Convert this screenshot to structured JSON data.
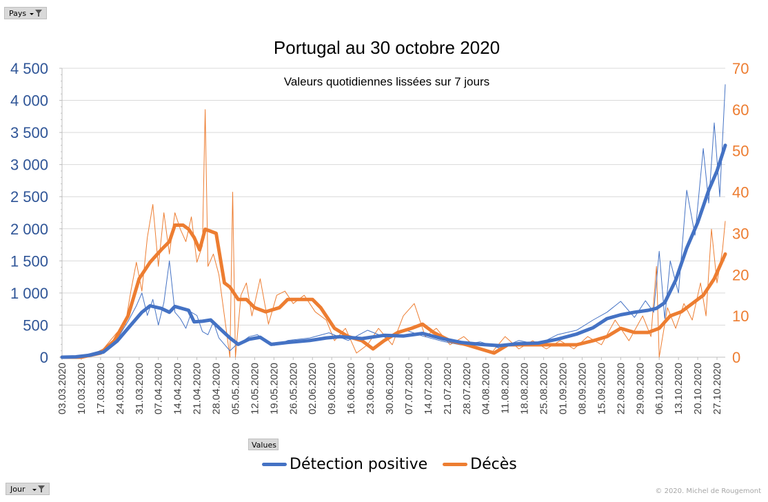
{
  "filters": {
    "pays_label": "Pays",
    "jour_label": "Jour",
    "values_label": "Values"
  },
  "copyright": "© 2020.  Michel de Rougemont",
  "chart_data": {
    "type": "line",
    "title": "Portugal au 30 octobre 2020",
    "subtitle": "Valeurs quotidiennes lissées sur 7 jours",
    "colors": {
      "detection": "#4472C4",
      "deces": "#ED7D31",
      "grid": "#d9d9d9"
    },
    "x_range": [
      "2020-03-03",
      "2020-10-30"
    ],
    "x_tick_labels": [
      "03.03.2020",
      "10.03.2020",
      "17.03.2020",
      "24.03.2020",
      "31.03.2020",
      "07.04.2020",
      "14.04.2020",
      "21.04.2020",
      "28.04.2020",
      "05.05.2020",
      "12.05.2020",
      "19.05.2020",
      "26.05.2020",
      "02.06.2020",
      "09.06.2020",
      "16.06.2020",
      "23.06.2020",
      "30.06.2020",
      "07.07.2020",
      "14.07.2020",
      "21.07.2020",
      "28.07.2020",
      "04.08.2020",
      "11.08.2020",
      "18.08.2020",
      "25.08.2020",
      "01.09.2020",
      "08.09.2020",
      "15.09.2020",
      "22.09.2020",
      "29.09.2020",
      "06.10.2020",
      "13.10.2020",
      "20.10.2020",
      "27.10.2020"
    ],
    "y_left": {
      "min": 0,
      "max": 4500,
      "ticks": [
        "0",
        "500",
        "1 000",
        "1 500",
        "2 000",
        "2 500",
        "3 000",
        "3 500",
        "4 000",
        "4 500"
      ],
      "tick_values": [
        0,
        500,
        1000,
        1500,
        2000,
        2500,
        3000,
        3500,
        4000,
        4500
      ]
    },
    "y_right": {
      "min": 0,
      "max": 70,
      "ticks": [
        "0",
        "10",
        "20",
        "30",
        "40",
        "50",
        "60",
        "70"
      ],
      "tick_values": [
        0,
        10,
        20,
        30,
        40,
        50,
        60,
        70
      ]
    },
    "series": [
      {
        "name": "Détection positive",
        "axis": "left",
        "smoothed": [
          [
            "2020-03-03",
            0
          ],
          [
            "2020-03-08",
            5
          ],
          [
            "2020-03-13",
            30
          ],
          [
            "2020-03-18",
            80
          ],
          [
            "2020-03-23",
            250
          ],
          [
            "2020-03-28",
            500
          ],
          [
            "2020-04-01",
            700
          ],
          [
            "2020-04-04",
            800
          ],
          [
            "2020-04-08",
            760
          ],
          [
            "2020-04-11",
            700
          ],
          [
            "2020-04-13",
            790
          ],
          [
            "2020-04-18",
            730
          ],
          [
            "2020-04-20",
            550
          ],
          [
            "2020-04-23",
            560
          ],
          [
            "2020-04-26",
            580
          ],
          [
            "2020-04-30",
            420
          ],
          [
            "2020-05-03",
            300
          ],
          [
            "2020-05-06",
            200
          ],
          [
            "2020-05-10",
            280
          ],
          [
            "2020-05-14",
            310
          ],
          [
            "2020-05-18",
            200
          ],
          [
            "2020-05-24",
            230
          ],
          [
            "2020-06-01",
            260
          ],
          [
            "2020-06-07",
            300
          ],
          [
            "2020-06-12",
            320
          ],
          [
            "2020-06-20",
            290
          ],
          [
            "2020-06-28",
            340
          ],
          [
            "2020-07-05",
            330
          ],
          [
            "2020-07-12",
            370
          ],
          [
            "2020-07-19",
            290
          ],
          [
            "2020-07-26",
            230
          ],
          [
            "2020-08-02",
            200
          ],
          [
            "2020-08-09",
            180
          ],
          [
            "2020-08-16",
            210
          ],
          [
            "2020-08-23",
            220
          ],
          [
            "2020-08-30",
            280
          ],
          [
            "2020-09-06",
            360
          ],
          [
            "2020-09-12",
            460
          ],
          [
            "2020-09-17",
            600
          ],
          [
            "2020-09-22",
            660
          ],
          [
            "2020-09-27",
            700
          ],
          [
            "2020-10-02",
            730
          ],
          [
            "2020-10-05",
            760
          ],
          [
            "2020-10-08",
            850
          ],
          [
            "2020-10-12",
            1200
          ],
          [
            "2020-10-16",
            1700
          ],
          [
            "2020-10-20",
            2100
          ],
          [
            "2020-10-24",
            2600
          ],
          [
            "2020-10-27",
            2900
          ],
          [
            "2020-10-30",
            3300
          ]
        ],
        "raw": [
          [
            "2020-03-03",
            0
          ],
          [
            "2020-03-10",
            20
          ],
          [
            "2020-03-17",
            100
          ],
          [
            "2020-03-21",
            200
          ],
          [
            "2020-03-24",
            350
          ],
          [
            "2020-03-27",
            560
          ],
          [
            "2020-03-30",
            800
          ],
          [
            "2020-04-01",
            1000
          ],
          [
            "2020-04-03",
            650
          ],
          [
            "2020-04-05",
            900
          ],
          [
            "2020-04-07",
            500
          ],
          [
            "2020-04-09",
            850
          ],
          [
            "2020-04-11",
            1500
          ],
          [
            "2020-04-13",
            700
          ],
          [
            "2020-04-15",
            600
          ],
          [
            "2020-04-17",
            450
          ],
          [
            "2020-04-19",
            700
          ],
          [
            "2020-04-21",
            650
          ],
          [
            "2020-04-23",
            400
          ],
          [
            "2020-04-25",
            350
          ],
          [
            "2020-04-27",
            550
          ],
          [
            "2020-04-29",
            300
          ],
          [
            "2020-05-01",
            200
          ],
          [
            "2020-05-03",
            100
          ],
          [
            "2020-05-05",
            180
          ],
          [
            "2020-05-07",
            230
          ],
          [
            "2020-05-10",
            320
          ],
          [
            "2020-05-13",
            350
          ],
          [
            "2020-05-16",
            250
          ],
          [
            "2020-05-19",
            180
          ],
          [
            "2020-05-24",
            260
          ],
          [
            "2020-06-01",
            300
          ],
          [
            "2020-06-08",
            380
          ],
          [
            "2020-06-15",
            260
          ],
          [
            "2020-06-22",
            420
          ],
          [
            "2020-06-29",
            300
          ],
          [
            "2020-07-06",
            420
          ],
          [
            "2020-07-12",
            330
          ],
          [
            "2020-07-19",
            250
          ],
          [
            "2020-07-26",
            190
          ],
          [
            "2020-08-02",
            240
          ],
          [
            "2020-08-09",
            140
          ],
          [
            "2020-08-16",
            260
          ],
          [
            "2020-08-23",
            200
          ],
          [
            "2020-08-30",
            350
          ],
          [
            "2020-09-06",
            420
          ],
          [
            "2020-09-12",
            580
          ],
          [
            "2020-09-17",
            700
          ],
          [
            "2020-09-22",
            870
          ],
          [
            "2020-09-27",
            620
          ],
          [
            "2020-10-01",
            880
          ],
          [
            "2020-10-04",
            700
          ],
          [
            "2020-10-06",
            1650
          ],
          [
            "2020-10-08",
            600
          ],
          [
            "2020-10-10",
            1500
          ],
          [
            "2020-10-13",
            1000
          ],
          [
            "2020-10-16",
            2600
          ],
          [
            "2020-10-19",
            1900
          ],
          [
            "2020-10-22",
            3250
          ],
          [
            "2020-10-24",
            2400
          ],
          [
            "2020-10-26",
            3650
          ],
          [
            "2020-10-28",
            2500
          ],
          [
            "2020-10-30",
            4250
          ]
        ]
      },
      {
        "name": "Décès",
        "axis": "right",
        "smoothed": [
          [
            "2020-03-03",
            0
          ],
          [
            "2020-03-10",
            0
          ],
          [
            "2020-03-17",
            1
          ],
          [
            "2020-03-22",
            4
          ],
          [
            "2020-03-27",
            10
          ],
          [
            "2020-03-31",
            19
          ],
          [
            "2020-04-04",
            23
          ],
          [
            "2020-04-08",
            26
          ],
          [
            "2020-04-11",
            28
          ],
          [
            "2020-04-13",
            32
          ],
          [
            "2020-04-16",
            32
          ],
          [
            "2020-04-18",
            31
          ],
          [
            "2020-04-20",
            29
          ],
          [
            "2020-04-22",
            26
          ],
          [
            "2020-04-24",
            31
          ],
          [
            "2020-04-28",
            30
          ],
          [
            "2020-05-01",
            18
          ],
          [
            "2020-05-03",
            17
          ],
          [
            "2020-05-06",
            14
          ],
          [
            "2020-05-09",
            14
          ],
          [
            "2020-05-12",
            12
          ],
          [
            "2020-05-16",
            11
          ],
          [
            "2020-05-21",
            12
          ],
          [
            "2020-05-24",
            14
          ],
          [
            "2020-05-27",
            14
          ],
          [
            "2020-06-02",
            14
          ],
          [
            "2020-06-05",
            12
          ],
          [
            "2020-06-10",
            7
          ],
          [
            "2020-06-15",
            5
          ],
          [
            "2020-06-20",
            4
          ],
          [
            "2020-06-24",
            2
          ],
          [
            "2020-06-28",
            4
          ],
          [
            "2020-07-03",
            6
          ],
          [
            "2020-07-08",
            7
          ],
          [
            "2020-07-12",
            8
          ],
          [
            "2020-07-16",
            6
          ],
          [
            "2020-07-22",
            4
          ],
          [
            "2020-07-28",
            3
          ],
          [
            "2020-08-02",
            2
          ],
          [
            "2020-08-07",
            1
          ],
          [
            "2020-08-12",
            3
          ],
          [
            "2020-08-17",
            3
          ],
          [
            "2020-08-22",
            3
          ],
          [
            "2020-08-27",
            3
          ],
          [
            "2020-09-01",
            3
          ],
          [
            "2020-09-06",
            3
          ],
          [
            "2020-09-12",
            4
          ],
          [
            "2020-09-17",
            5
          ],
          [
            "2020-09-22",
            7
          ],
          [
            "2020-09-27",
            6
          ],
          [
            "2020-10-02",
            6
          ],
          [
            "2020-10-06",
            7
          ],
          [
            "2020-10-10",
            10
          ],
          [
            "2020-10-14",
            11
          ],
          [
            "2020-10-18",
            13
          ],
          [
            "2020-10-22",
            15
          ],
          [
            "2020-10-26",
            19
          ],
          [
            "2020-10-30",
            25
          ]
        ],
        "raw": [
          [
            "2020-03-03",
            0
          ],
          [
            "2020-03-12",
            0
          ],
          [
            "2020-03-18",
            2
          ],
          [
            "2020-03-23",
            6
          ],
          [
            "2020-03-26",
            8
          ],
          [
            "2020-03-28",
            16
          ],
          [
            "2020-03-30",
            23
          ],
          [
            "2020-04-01",
            16
          ],
          [
            "2020-04-03",
            29
          ],
          [
            "2020-04-05",
            37
          ],
          [
            "2020-04-07",
            22
          ],
          [
            "2020-04-09",
            35
          ],
          [
            "2020-04-11",
            25
          ],
          [
            "2020-04-13",
            35
          ],
          [
            "2020-04-15",
            31
          ],
          [
            "2020-04-17",
            28
          ],
          [
            "2020-04-19",
            34
          ],
          [
            "2020-04-21",
            23
          ],
          [
            "2020-04-23",
            27
          ],
          [
            "2020-04-24",
            60
          ],
          [
            "2020-04-25",
            22
          ],
          [
            "2020-04-27",
            25
          ],
          [
            "2020-04-29",
            20
          ],
          [
            "2020-05-01",
            10
          ],
          [
            "2020-05-03",
            0
          ],
          [
            "2020-05-04",
            40
          ],
          [
            "2020-05-05",
            0
          ],
          [
            "2020-05-07",
            15
          ],
          [
            "2020-05-09",
            18
          ],
          [
            "2020-05-11",
            10
          ],
          [
            "2020-05-14",
            19
          ],
          [
            "2020-05-17",
            8
          ],
          [
            "2020-05-20",
            15
          ],
          [
            "2020-05-23",
            16
          ],
          [
            "2020-05-26",
            13
          ],
          [
            "2020-05-30",
            15
          ],
          [
            "2020-06-03",
            11
          ],
          [
            "2020-06-07",
            9
          ],
          [
            "2020-06-10",
            4
          ],
          [
            "2020-06-14",
            7
          ],
          [
            "2020-06-18",
            1
          ],
          [
            "2020-06-22",
            3
          ],
          [
            "2020-06-26",
            7
          ],
          [
            "2020-07-01",
            3
          ],
          [
            "2020-07-05",
            10
          ],
          [
            "2020-07-09",
            13
          ],
          [
            "2020-07-13",
            5
          ],
          [
            "2020-07-17",
            7
          ],
          [
            "2020-07-22",
            3
          ],
          [
            "2020-07-27",
            5
          ],
          [
            "2020-08-01",
            2
          ],
          [
            "2020-08-06",
            1
          ],
          [
            "2020-08-11",
            5
          ],
          [
            "2020-08-16",
            2
          ],
          [
            "2020-08-21",
            4
          ],
          [
            "2020-08-26",
            2
          ],
          [
            "2020-08-31",
            4
          ],
          [
            "2020-09-05",
            2
          ],
          [
            "2020-09-10",
            5
          ],
          [
            "2020-09-15",
            3
          ],
          [
            "2020-09-20",
            9
          ],
          [
            "2020-09-25",
            4
          ],
          [
            "2020-09-30",
            10
          ],
          [
            "2020-10-03",
            5
          ],
          [
            "2020-10-05",
            22
          ],
          [
            "2020-10-06",
            0
          ],
          [
            "2020-10-09",
            12
          ],
          [
            "2020-10-12",
            7
          ],
          [
            "2020-10-15",
            13
          ],
          [
            "2020-10-18",
            9
          ],
          [
            "2020-10-21",
            18
          ],
          [
            "2020-10-23",
            10
          ],
          [
            "2020-10-25",
            31
          ],
          [
            "2020-10-27",
            18
          ],
          [
            "2020-10-29",
            26
          ],
          [
            "2020-10-30",
            33
          ]
        ]
      }
    ]
  }
}
